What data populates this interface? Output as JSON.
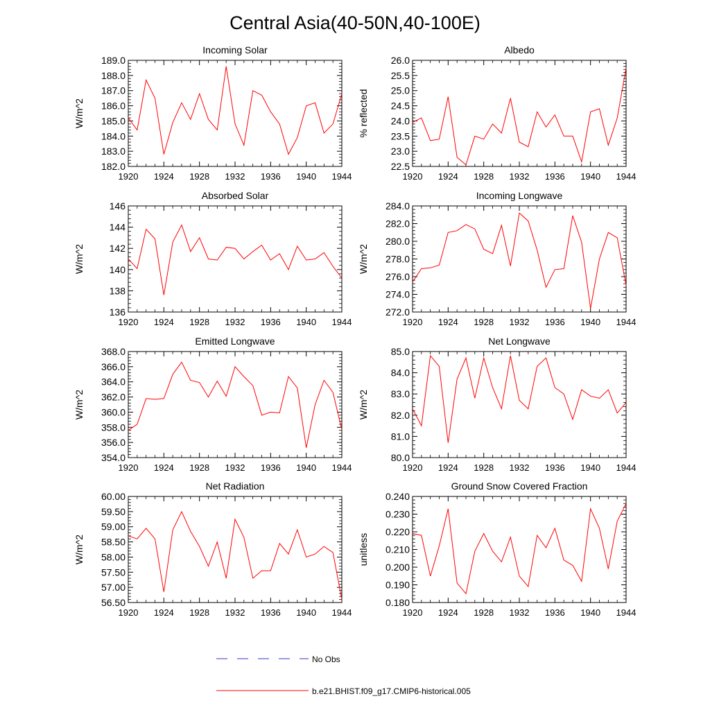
{
  "title": "Central Asia(40-50N,40-100E)",
  "colors": {
    "model": "#ff0000",
    "obs": "#3333cc",
    "axis": "#000000"
  },
  "legend": {
    "obs_label": "No Obs",
    "model_label": "b.e21.BHIST.f09_g17.CMIP6-historical.005"
  },
  "chart_data": [
    {
      "type": "line",
      "title": "Incoming Solar",
      "ylabel": "W/m^2",
      "ylim": [
        182.0,
        189.0
      ],
      "yticks": [
        "182.0",
        "183.0",
        "184.0",
        "185.0",
        "186.0",
        "187.0",
        "188.0",
        "189.0"
      ],
      "xticks": [
        "1920",
        "1924",
        "1928",
        "1932",
        "1936",
        "1940",
        "1944"
      ],
      "x": [
        1920,
        1921,
        1922,
        1923,
        1924,
        1925,
        1926,
        1927,
        1928,
        1929,
        1930,
        1931,
        1932,
        1933,
        1934,
        1935,
        1936,
        1937,
        1938,
        1939,
        1940,
        1941,
        1942,
        1943,
        1944
      ],
      "values": [
        185.2,
        184.4,
        187.7,
        186.5,
        182.8,
        184.9,
        186.2,
        185.1,
        186.8,
        185.1,
        184.4,
        188.6,
        184.8,
        183.4,
        187.0,
        186.7,
        185.6,
        184.8,
        182.8,
        183.9,
        186.0,
        186.2,
        184.2,
        184.8,
        186.8
      ]
    },
    {
      "type": "line",
      "title": "Albedo",
      "ylabel": "% reflected",
      "ylim": [
        22.5,
        26.0
      ],
      "yticks": [
        "22.5",
        "23.0",
        "23.5",
        "24.0",
        "24.5",
        "25.0",
        "25.5",
        "26.0"
      ],
      "xticks": [
        "1920",
        "1924",
        "1928",
        "1932",
        "1936",
        "1940",
        "1944"
      ],
      "x": [
        1920,
        1921,
        1922,
        1923,
        1924,
        1925,
        1926,
        1927,
        1928,
        1929,
        1930,
        1931,
        1932,
        1933,
        1934,
        1935,
        1936,
        1937,
        1938,
        1939,
        1940,
        1941,
        1942,
        1943,
        1944
      ],
      "values": [
        23.95,
        24.1,
        23.35,
        23.4,
        24.8,
        22.8,
        22.55,
        23.5,
        23.4,
        23.9,
        23.6,
        24.75,
        23.3,
        23.15,
        24.3,
        23.8,
        24.2,
        23.5,
        23.5,
        22.65,
        24.3,
        24.4,
        23.2,
        24.1,
        25.75
      ]
    },
    {
      "type": "line",
      "title": "Absorbed Solar",
      "ylabel": "W/m^2",
      "ylim": [
        136,
        146
      ],
      "yticks": [
        "136",
        "138",
        "140",
        "142",
        "144",
        "146"
      ],
      "xticks": [
        "1920",
        "1924",
        "1928",
        "1932",
        "1936",
        "1940",
        "1944"
      ],
      "x": [
        1920,
        1921,
        1922,
        1923,
        1924,
        1925,
        1926,
        1927,
        1928,
        1929,
        1930,
        1931,
        1932,
        1933,
        1934,
        1935,
        1936,
        1937,
        1938,
        1939,
        1940,
        1941,
        1942,
        1943,
        1944
      ],
      "values": [
        141.0,
        140.1,
        143.8,
        142.9,
        137.6,
        142.6,
        144.2,
        141.7,
        143.0,
        141.0,
        140.9,
        142.1,
        142.0,
        141.0,
        141.7,
        142.3,
        140.9,
        141.5,
        140.0,
        142.2,
        140.9,
        141.0,
        141.6,
        140.3,
        139.2
      ]
    },
    {
      "type": "line",
      "title": "Incoming Longwave",
      "ylabel": "W/m^2",
      "ylim": [
        272.0,
        284.0
      ],
      "yticks": [
        "272.0",
        "274.0",
        "276.0",
        "278.0",
        "280.0",
        "282.0",
        "284.0"
      ],
      "xticks": [
        "1920",
        "1924",
        "1928",
        "1932",
        "1936",
        "1940",
        "1944"
      ],
      "x": [
        1920,
        1921,
        1922,
        1923,
        1924,
        1925,
        1926,
        1927,
        1928,
        1929,
        1930,
        1931,
        1932,
        1933,
        1934,
        1935,
        1936,
        1937,
        1938,
        1939,
        1940,
        1941,
        1942,
        1943,
        1944
      ],
      "values": [
        275.4,
        276.9,
        277.0,
        277.3,
        281.0,
        281.2,
        281.9,
        281.4,
        279.1,
        278.6,
        281.8,
        277.2,
        283.2,
        282.3,
        279.0,
        274.8,
        276.8,
        276.9,
        282.9,
        279.9,
        272.4,
        278.0,
        281.0,
        280.4,
        275.0
      ]
    },
    {
      "type": "line",
      "title": "Emitted Longwave",
      "ylabel": "W/m^2",
      "ylim": [
        354.0,
        368.0
      ],
      "yticks": [
        "354.0",
        "356.0",
        "358.0",
        "360.0",
        "362.0",
        "364.0",
        "366.0",
        "368.0"
      ],
      "xticks": [
        "1920",
        "1924",
        "1928",
        "1932",
        "1936",
        "1940",
        "1944"
      ],
      "x": [
        1920,
        1921,
        1922,
        1923,
        1924,
        1925,
        1926,
        1927,
        1928,
        1929,
        1930,
        1931,
        1932,
        1933,
        1934,
        1935,
        1936,
        1937,
        1938,
        1939,
        1940,
        1941,
        1942,
        1943,
        1944
      ],
      "values": [
        357.6,
        358.4,
        361.8,
        361.7,
        361.8,
        365.0,
        366.6,
        364.2,
        363.9,
        362.0,
        364.1,
        362.1,
        366.0,
        364.7,
        363.5,
        359.6,
        360.0,
        359.9,
        364.7,
        363.2,
        355.3,
        361.0,
        364.2,
        362.6,
        357.7
      ]
    },
    {
      "type": "line",
      "title": "Net Longwave",
      "ylabel": "W/m^2",
      "ylim": [
        80.0,
        85.0
      ],
      "yticks": [
        "80.0",
        "81.0",
        "82.0",
        "83.0",
        "84.0",
        "85.0"
      ],
      "xticks": [
        "1920",
        "1924",
        "1928",
        "1932",
        "1936",
        "1940",
        "1944"
      ],
      "x": [
        1920,
        1921,
        1922,
        1923,
        1924,
        1925,
        1926,
        1927,
        1928,
        1929,
        1930,
        1931,
        1932,
        1933,
        1934,
        1935,
        1936,
        1937,
        1938,
        1939,
        1940,
        1941,
        1942,
        1943,
        1944
      ],
      "values": [
        82.3,
        81.5,
        84.8,
        84.3,
        80.7,
        83.7,
        84.7,
        82.8,
        84.7,
        83.3,
        82.3,
        84.8,
        82.7,
        82.3,
        84.3,
        84.7,
        83.3,
        83.0,
        81.8,
        83.2,
        82.9,
        82.8,
        83.2,
        82.1,
        82.6
      ]
    },
    {
      "type": "line",
      "title": "Net Radiation",
      "ylabel": "W/m^2",
      "ylim": [
        56.5,
        60.0
      ],
      "yticks": [
        "56.50",
        "57.00",
        "57.50",
        "58.00",
        "58.50",
        "59.00",
        "59.50",
        "60.00"
      ],
      "xticks": [
        "1920",
        "1924",
        "1928",
        "1932",
        "1936",
        "1940",
        "1944"
      ],
      "x": [
        1920,
        1921,
        1922,
        1923,
        1924,
        1925,
        1926,
        1927,
        1928,
        1929,
        1930,
        1931,
        1932,
        1933,
        1934,
        1935,
        1936,
        1937,
        1938,
        1939,
        1940,
        1941,
        1942,
        1943,
        1944
      ],
      "values": [
        58.7,
        58.6,
        58.95,
        58.6,
        56.85,
        58.9,
        59.5,
        58.85,
        58.35,
        57.7,
        58.5,
        57.3,
        59.25,
        58.65,
        57.3,
        57.55,
        57.55,
        58.45,
        58.1,
        58.9,
        58.0,
        58.1,
        58.35,
        58.15,
        56.6
      ]
    },
    {
      "type": "line",
      "title": "Ground Snow Covered Fraction",
      "ylabel": "unitless",
      "ylim": [
        0.18,
        0.24
      ],
      "yticks": [
        "0.180",
        "0.190",
        "0.200",
        "0.210",
        "0.220",
        "0.230",
        "0.240"
      ],
      "xticks": [
        "1920",
        "1924",
        "1928",
        "1932",
        "1936",
        "1940",
        "1944"
      ],
      "x": [
        1920,
        1921,
        1922,
        1923,
        1924,
        1925,
        1926,
        1927,
        1928,
        1929,
        1930,
        1931,
        1932,
        1933,
        1934,
        1935,
        1936,
        1937,
        1938,
        1939,
        1940,
        1941,
        1942,
        1943,
        1944
      ],
      "values": [
        0.219,
        0.218,
        0.195,
        0.212,
        0.233,
        0.191,
        0.185,
        0.209,
        0.219,
        0.209,
        0.203,
        0.217,
        0.195,
        0.189,
        0.218,
        0.211,
        0.222,
        0.204,
        0.201,
        0.192,
        0.233,
        0.222,
        0.199,
        0.226,
        0.236
      ]
    }
  ]
}
